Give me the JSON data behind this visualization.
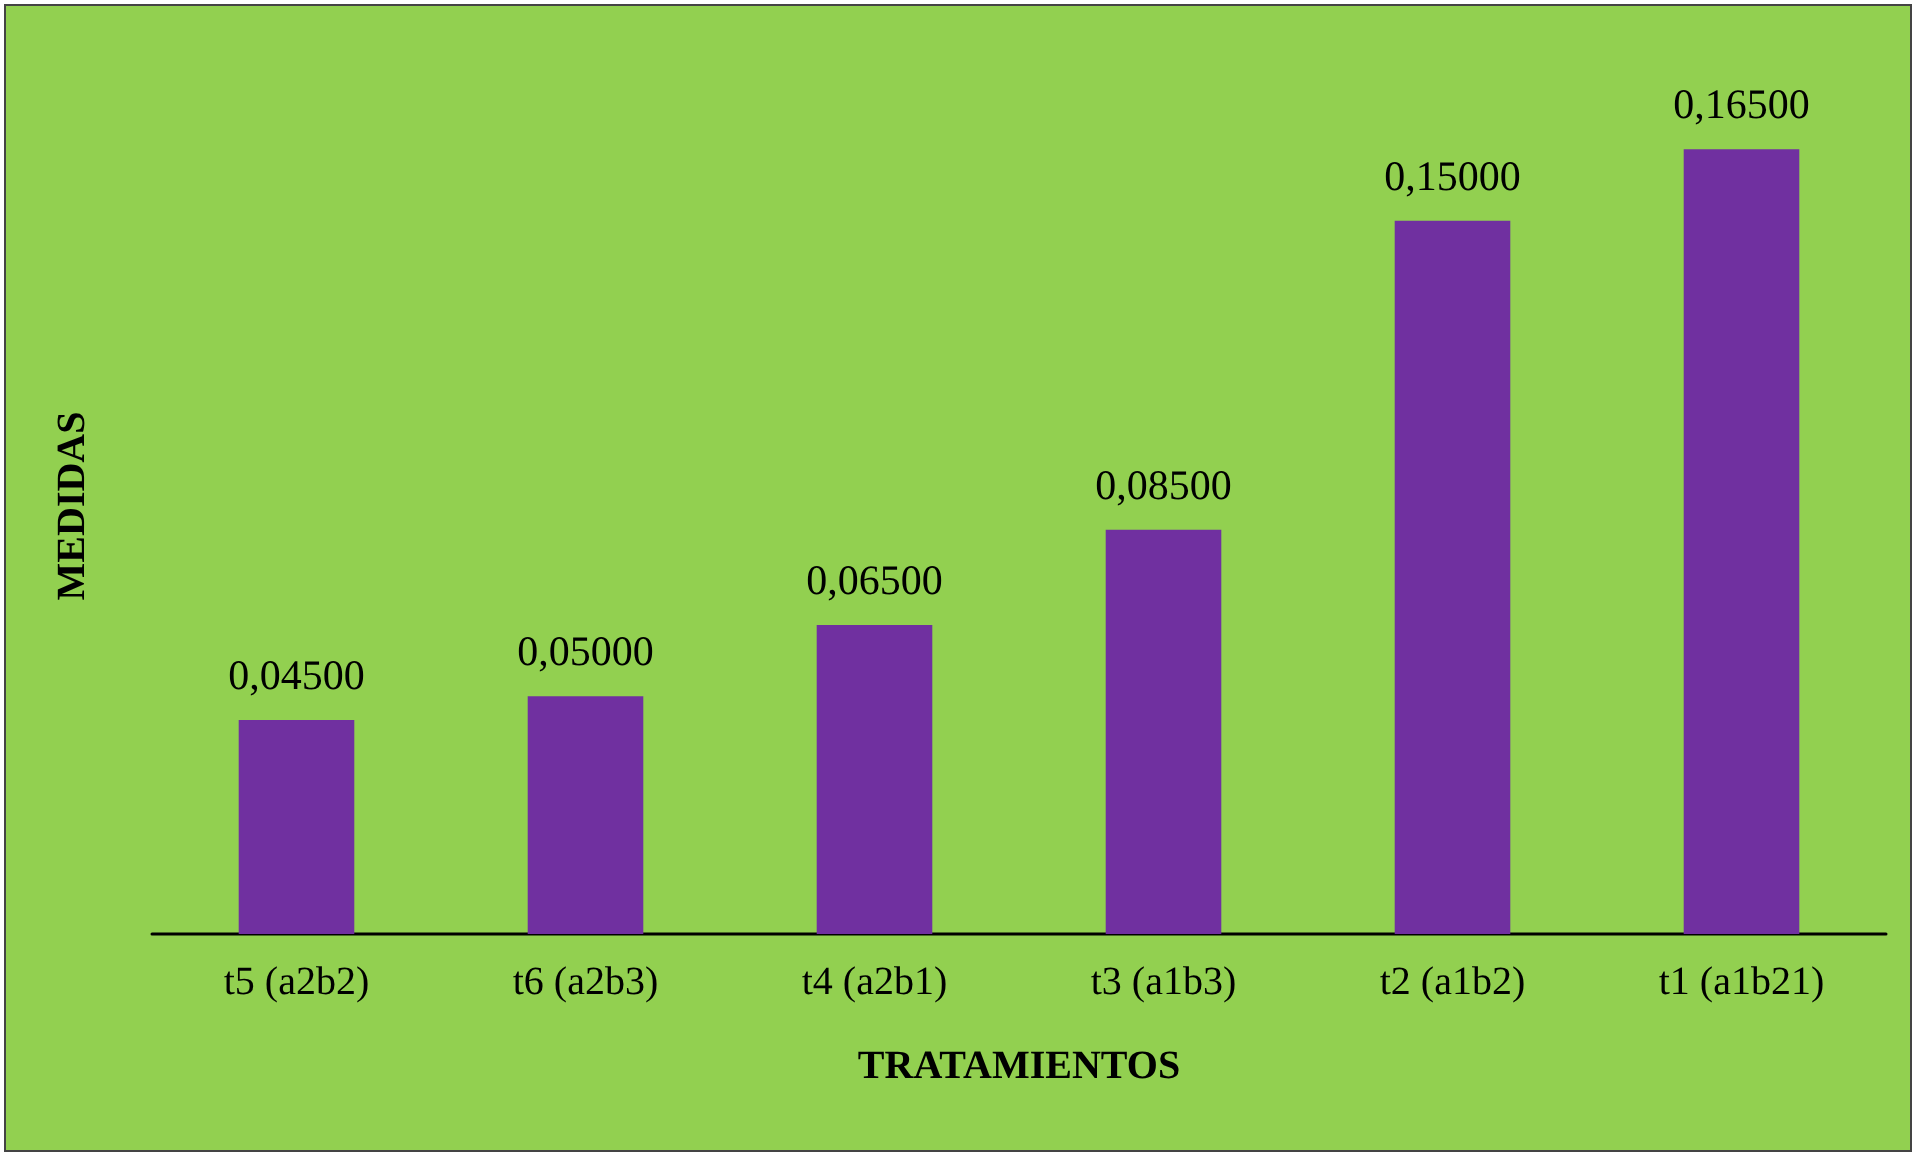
{
  "chart_data": {
    "type": "bar",
    "xlabel": "TRATAMIENTOS",
    "ylabel": "MEDIDAS",
    "categories": [
      "t5 (a2b2)",
      "t6 (a2b3)",
      "t4 (a2b1)",
      "t3 (a1b3)",
      "t2 (a1b2)",
      "t1 (a1b21)"
    ],
    "values": [
      0.045,
      0.05,
      0.065,
      0.085,
      0.15,
      0.165
    ],
    "value_labels": [
      "0,04500",
      "0,05000",
      "0,06500",
      "0,08500",
      "0,15000",
      "0,16500"
    ],
    "color": "#7030a0",
    "tick_labels": "x"
  }
}
